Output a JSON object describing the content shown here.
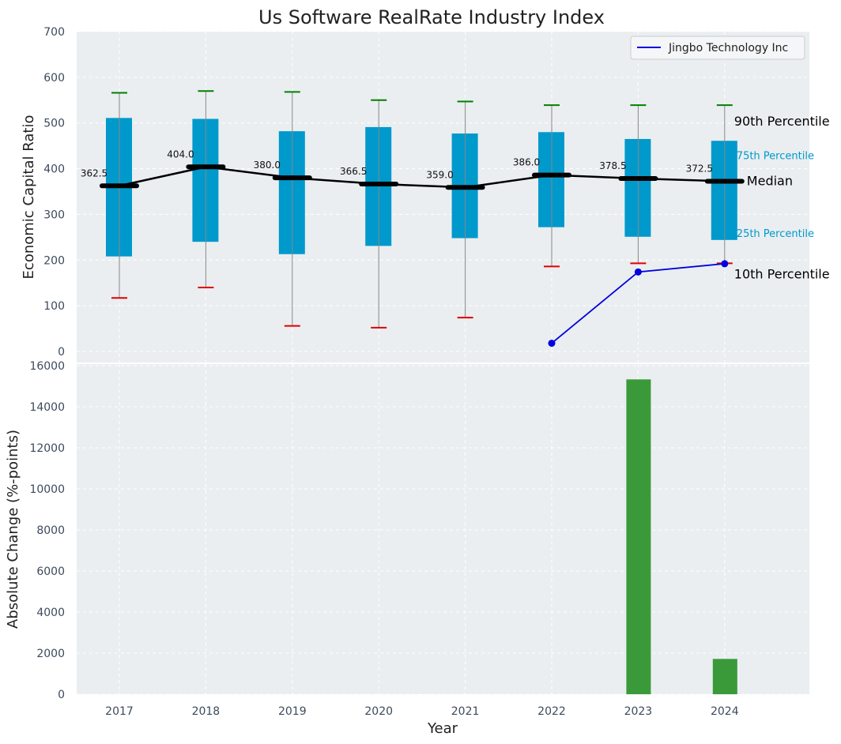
{
  "colors": {
    "panel_bg": "#eaeef0",
    "box": "#0099cc",
    "whisker": "#888888",
    "p90": "#008000",
    "p10": "#e00000",
    "median": "#000000",
    "company": "#0000e0",
    "bar": "#3a9a3a",
    "grid": "#ffffff"
  },
  "chart_data": [
    {
      "type": "box",
      "title": "Us Software RealRate Industry Index",
      "ylabel": "Economic Capital Ratio",
      "ylim": [
        0,
        700
      ],
      "yticks": [
        0,
        100,
        200,
        300,
        400,
        500,
        600,
        700
      ],
      "x": [
        2017,
        2018,
        2019,
        2020,
        2021,
        2022,
        2023,
        2024
      ],
      "p10": [
        117,
        140,
        56,
        52,
        74,
        186,
        193,
        193
      ],
      "p25": [
        208,
        240,
        213,
        231,
        248,
        272,
        251,
        244
      ],
      "median": [
        362.5,
        404.0,
        380.0,
        366.5,
        359.0,
        386.0,
        378.5,
        372.5
      ],
      "median_labels": [
        "362.5",
        "404.0",
        "380.0",
        "366.5",
        "359.0",
        "386.0",
        "378.5",
        "372.5"
      ],
      "p75": [
        511,
        509,
        482,
        491,
        477,
        480,
        465,
        461
      ],
      "p90": [
        566,
        570,
        568,
        550,
        547,
        539,
        539,
        539
      ],
      "series": [
        {
          "name": "Jingbo Technology Inc",
          "x": [
            2022,
            2023,
            2024
          ],
          "values": [
            18,
            174,
            192
          ]
        }
      ],
      "annotations": {
        "p90": "90th Percentile",
        "p75": "75th Percentile",
        "median": "Median",
        "p25": "25th Percentile",
        "p10": "10th Percentile"
      },
      "legend_position": "top-right",
      "grid": true
    },
    {
      "type": "bar",
      "ylabel": "Absolute Change (%-points)",
      "xlabel": "Year",
      "ylim": [
        0,
        16000
      ],
      "yticks": [
        0,
        2000,
        4000,
        6000,
        8000,
        10000,
        12000,
        14000,
        16000
      ],
      "categories": [
        "2017",
        "2018",
        "2019",
        "2020",
        "2021",
        "2022",
        "2023",
        "2024"
      ],
      "values": [
        null,
        null,
        null,
        null,
        null,
        null,
        15333,
        1720
      ],
      "grid": true
    }
  ]
}
